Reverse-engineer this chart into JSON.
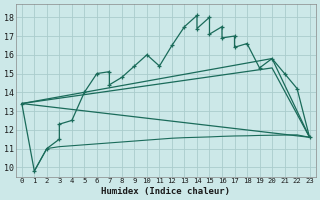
{
  "xlabel": "Humidex (Indice chaleur)",
  "background_color": "#cce8e8",
  "grid_color": "#aacccc",
  "line_color": "#1a6b5a",
  "xlim": [
    -0.5,
    23.5
  ],
  "ylim": [
    9.5,
    18.7
  ],
  "xticks": [
    0,
    1,
    2,
    3,
    4,
    5,
    6,
    7,
    8,
    9,
    10,
    11,
    12,
    13,
    14,
    15,
    16,
    17,
    18,
    19,
    20,
    21,
    22,
    23
  ],
  "yticks": [
    10,
    11,
    12,
    13,
    14,
    15,
    16,
    17,
    18
  ],
  "line1_x": [
    0,
    1,
    2,
    3,
    3,
    4,
    5,
    6,
    7,
    7,
    8,
    9,
    10,
    11,
    12,
    13,
    14,
    14,
    15,
    15,
    16,
    16,
    17,
    17,
    18,
    19,
    20,
    21,
    22,
    23
  ],
  "line1_y": [
    13.4,
    9.8,
    11.0,
    11.5,
    12.3,
    12.5,
    14.0,
    15.0,
    15.1,
    14.4,
    14.8,
    15.4,
    16.0,
    15.4,
    16.5,
    17.5,
    18.1,
    17.4,
    18.0,
    17.1,
    17.5,
    16.9,
    17.0,
    16.4,
    16.6,
    15.3,
    15.8,
    15.0,
    14.2,
    11.6
  ],
  "line2_x": [
    0,
    23
  ],
  "line2_y": [
    13.4,
    11.6
  ],
  "line3_x": [
    0,
    20,
    23
  ],
  "line3_y": [
    13.4,
    15.3,
    11.6
  ],
  "line4_x": [
    0,
    20,
    23
  ],
  "line4_y": [
    13.4,
    15.8,
    11.6
  ],
  "flat_x": [
    1,
    2,
    3,
    4,
    5,
    6,
    7,
    8,
    9,
    10,
    11,
    12,
    13,
    14,
    15,
    16,
    17,
    18,
    19,
    20,
    21,
    22,
    23
  ],
  "flat_y": [
    9.8,
    11.0,
    11.1,
    11.15,
    11.2,
    11.25,
    11.3,
    11.35,
    11.4,
    11.45,
    11.5,
    11.55,
    11.58,
    11.6,
    11.62,
    11.65,
    11.67,
    11.68,
    11.7,
    11.71,
    11.72,
    11.73,
    11.6
  ]
}
